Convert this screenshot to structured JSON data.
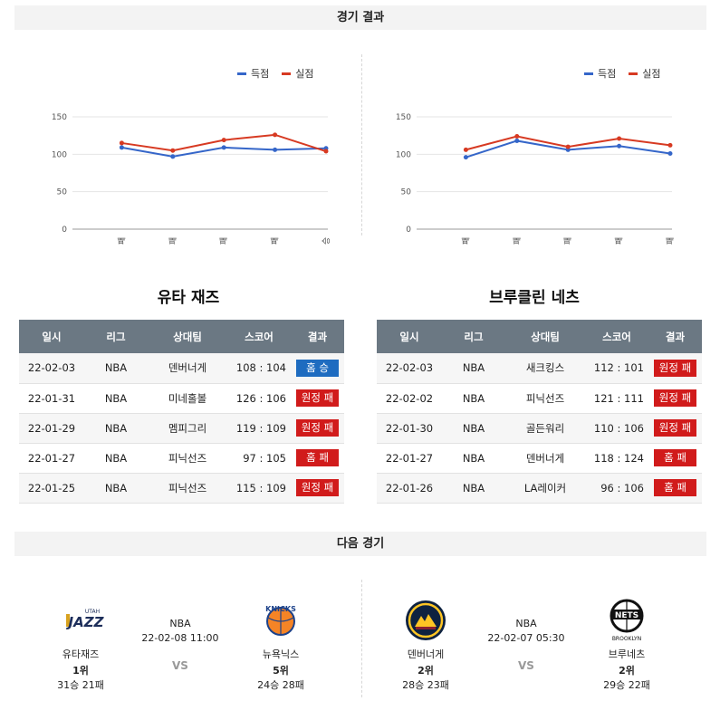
{
  "header": {
    "results_title": "경기 결과",
    "next_title": "다음 경기"
  },
  "legend": {
    "scored": "득점",
    "conceded": "실점",
    "scored_color": "#3566c9",
    "conceded_color": "#d73a22"
  },
  "chart_data": [
    {
      "type": "line",
      "categories": [
        "패",
        "패",
        "패",
        "패",
        "승"
      ],
      "series": [
        {
          "name": "득점",
          "values": [
            109,
            97,
            109,
            106,
            108
          ]
        },
        {
          "name": "실점",
          "values": [
            115,
            105,
            119,
            126,
            104
          ]
        }
      ],
      "ylim": [
        0,
        150
      ],
      "yticks": [
        0,
        50,
        100,
        150
      ],
      "grid": true,
      "legend_position": "top-right"
    },
    {
      "type": "line",
      "categories": [
        "패",
        "패",
        "패",
        "패",
        "패"
      ],
      "series": [
        {
          "name": "득점",
          "values": [
            96,
            118,
            106,
            111,
            101
          ]
        },
        {
          "name": "실점",
          "values": [
            106,
            124,
            110,
            121,
            112
          ]
        }
      ],
      "ylim": [
        0,
        150
      ],
      "yticks": [
        0,
        50,
        100,
        150
      ],
      "grid": true,
      "legend_position": "top-right"
    }
  ],
  "columns": [
    "일시",
    "리그",
    "상대팀",
    "스코어",
    "결과"
  ],
  "teams": [
    {
      "name": "유타 재즈",
      "rows": [
        {
          "date": "22-02-03",
          "league": "NBA",
          "opponent": "덴버너게",
          "score": "108 : 104",
          "result": "홈 승",
          "win": true
        },
        {
          "date": "22-01-31",
          "league": "NBA",
          "opponent": "미네홀볼",
          "score": "126 : 106",
          "result": "원정 패",
          "win": false
        },
        {
          "date": "22-01-29",
          "league": "NBA",
          "opponent": "멤피그리",
          "score": "119 : 109",
          "result": "원정 패",
          "win": false
        },
        {
          "date": "22-01-27",
          "league": "NBA",
          "opponent": "피닉선즈",
          "score": "97 : 105",
          "result": "홈 패",
          "win": false
        },
        {
          "date": "22-01-25",
          "league": "NBA",
          "opponent": "피닉선즈",
          "score": "115 : 109",
          "result": "원정 패",
          "win": false
        }
      ]
    },
    {
      "name": "브루클린 네츠",
      "rows": [
        {
          "date": "22-02-03",
          "league": "NBA",
          "opponent": "새크킹스",
          "score": "112 : 101",
          "result": "원정 패",
          "win": false
        },
        {
          "date": "22-02-02",
          "league": "NBA",
          "opponent": "피닉선즈",
          "score": "121 : 111",
          "result": "원정 패",
          "win": false
        },
        {
          "date": "22-01-30",
          "league": "NBA",
          "opponent": "골든워리",
          "score": "110 : 106",
          "result": "원정 패",
          "win": false
        },
        {
          "date": "22-01-27",
          "league": "NBA",
          "opponent": "덴버너게",
          "score": "118 : 124",
          "result": "홈 패",
          "win": false
        },
        {
          "date": "22-01-26",
          "league": "NBA",
          "opponent": "LA레이커",
          "score": "96 : 106",
          "result": "홈 패",
          "win": false
        }
      ]
    }
  ],
  "next_games": [
    {
      "league": "NBA",
      "datetime": "22-02-08 11:00",
      "vs": "VS",
      "home": {
        "name": "유타재즈",
        "rank": "1위",
        "record": "31승 21패",
        "logo_text": "JAZZ",
        "logo_small": "UTAH"
      },
      "away": {
        "name": "뉴욕닉스",
        "rank": "5위",
        "record": "24승 28패",
        "logo_text": "KNICKS"
      }
    },
    {
      "league": "NBA",
      "datetime": "22-02-07 05:30",
      "vs": "VS",
      "home": {
        "name": "덴버너게",
        "rank": "2위",
        "record": "28승 23패"
      },
      "away": {
        "name": "브루네츠",
        "rank": "2위",
        "record": "29승 22패",
        "logo_text": "NETS",
        "logo_small": "BROOKLYN"
      }
    }
  ]
}
